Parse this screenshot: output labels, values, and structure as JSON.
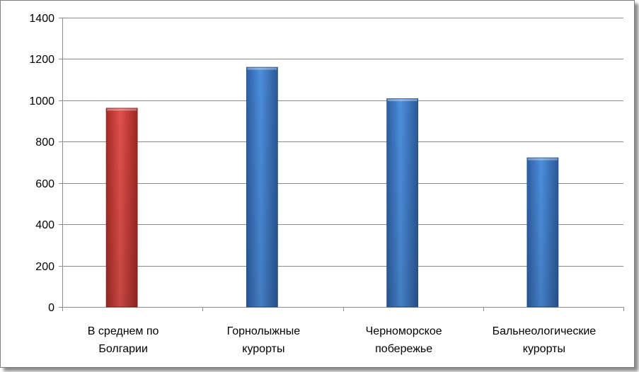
{
  "chart_data": {
    "type": "bar",
    "categories": [
      [
        "В среднем по",
        "Болгарии"
      ],
      [
        "Горнолыжные",
        "курорты"
      ],
      [
        "Черноморское",
        "побережье"
      ],
      [
        "Бальнеологические",
        "курорты"
      ]
    ],
    "values": [
      962,
      1160,
      1008,
      722
    ],
    "ylim": [
      0,
      1400
    ],
    "yticks": [
      0,
      200,
      400,
      600,
      800,
      1000,
      1200,
      1400
    ],
    "grid": true,
    "legend": "none",
    "colors": {
      "highlight": "#c83a36",
      "highlight_light": "#e8504a",
      "normal": "#3a73bf",
      "normal_light": "#4f8fde",
      "gridline": "#8c8c8c"
    },
    "highlight_index": 0
  }
}
